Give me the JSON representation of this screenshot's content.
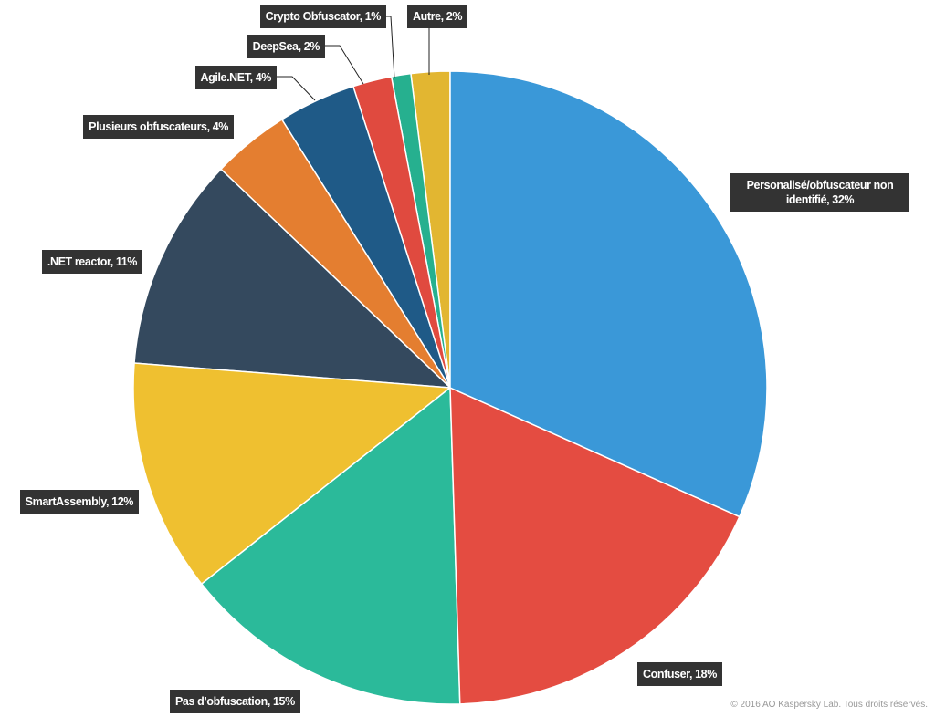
{
  "chart_data": {
    "type": "pie",
    "categories": [
      "Personalisé/obfuscateur non identifié, 32%",
      "Confuser, 18%",
      "Pas d’obfuscation, 15%",
      "SmartAssembly, 12%",
      ".NET reactor, 11%",
      "Plusieurs obfuscateurs, 4%",
      "Agile.NET, 4%",
      "DeepSea, 2%",
      "Crypto Obfuscator, 1%",
      "Autre, 2%"
    ],
    "values": [
      32,
      18,
      15,
      12,
      11,
      4,
      4,
      2,
      1,
      2
    ],
    "colors": [
      "#3a98d8",
      "#e44c41",
      "#2bba9a",
      "#efc030",
      "#34495e",
      "#e47e30",
      "#1f5a87",
      "#e04a3f",
      "#26b08f",
      "#e2b631"
    ],
    "footnote": "© 2016 AO Kaspersky Lab. Tous droits réservés."
  }
}
